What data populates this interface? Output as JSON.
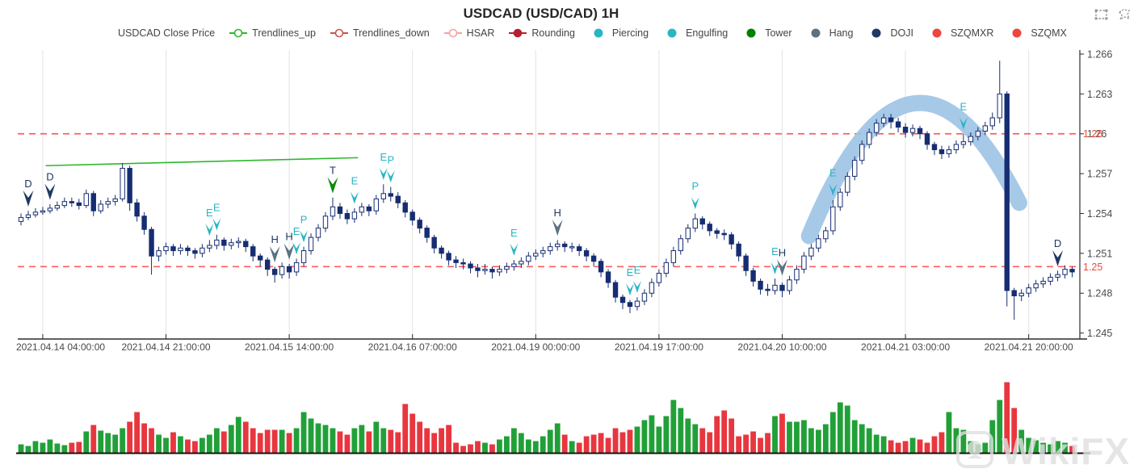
{
  "header": {
    "title": "USDCAD (USD/CAD) 1H",
    "tools": [
      {
        "name": "box-select"
      },
      {
        "name": "lasso-select"
      }
    ]
  },
  "legend": {
    "items": [
      {
        "label": "USDCAD Close Price",
        "marker": "none",
        "color": "#444444"
      },
      {
        "label": "Trendlines_up",
        "marker": "line-circle",
        "color": "#2eb82e"
      },
      {
        "label": "Trendlines_down",
        "marker": "line-circle",
        "color": "#c9544e"
      },
      {
        "label": "HSAR",
        "marker": "line-circle",
        "color": "#f4a3a3"
      },
      {
        "label": "Rounding",
        "marker": "line-dot",
        "color": "#b22230"
      },
      {
        "label": "Piercing",
        "marker": "dot",
        "color": "#2ab5c3"
      },
      {
        "label": "Engulfing",
        "marker": "dot",
        "color": "#2ab5c3"
      },
      {
        "label": "Tower",
        "marker": "dot",
        "color": "#008000"
      },
      {
        "label": "Hang",
        "marker": "dot",
        "color": "#5c7282"
      },
      {
        "label": "DOJI",
        "marker": "dot",
        "color": "#1f3864"
      },
      {
        "label": "SZQMXR",
        "marker": "dot",
        "color": "#ee4540"
      },
      {
        "label": "SZQMX",
        "marker": "dot",
        "color": "#ee4540"
      }
    ]
  },
  "watermark": {
    "text": "WikiFX"
  },
  "chart_data": {
    "type": "candlestick+volume",
    "title": "USDCAD (USD/CAD) 1H",
    "colors": {
      "bull": "#ffffff",
      "bear": "#172d72",
      "outline": "#172d72",
      "vol_up": "#21a038",
      "vol_down": "#e8363f",
      "hsar_line": "#ff5c5c",
      "hsar_label": "#e74c3c",
      "trendline_up": "#2eb82e",
      "arc": "#9dc3e6",
      "grid": "#e3e3e3",
      "axis": "#2b2b2b",
      "tick_label": "#4a4a4a",
      "marker_teal": "#2ab5c3",
      "marker_gray": "#5c7282",
      "marker_navy": "#1f3864",
      "marker_green": "#0a8a0a"
    },
    "y_axis": {
      "min": 1.245,
      "max": 1.266,
      "ticks": [
        "1.266",
        "1.263",
        "1.26",
        "1.257",
        "1.254",
        "1.251",
        "1.248",
        "1.245"
      ]
    },
    "x_axis": {
      "ticks": [
        {
          "i": 3,
          "label": "2021.04.14 04:00:00"
        },
        {
          "i": 20,
          "label": "2021.04.14 21:00:00"
        },
        {
          "i": 37,
          "label": "2021.04.15 14:00:00"
        },
        {
          "i": 54,
          "label": "2021.04.16 07:00:00"
        },
        {
          "i": 71,
          "label": "2021.04.19 00:00:00"
        },
        {
          "i": 88,
          "label": "2021.04.19 17:00:00"
        },
        {
          "i": 105,
          "label": "2021.04.20 10:00:00"
        },
        {
          "i": 122,
          "label": "2021.04.21 03:00:00"
        },
        {
          "i": 139,
          "label": "2021.04.21 20:00:00"
        }
      ]
    },
    "hsar_levels": [
      {
        "price": 1.26,
        "label": "1.26"
      },
      {
        "price": 1.25,
        "label": "1.25"
      }
    ],
    "trendline_up": {
      "i1": 3.4,
      "p1": 1.2576,
      "i2": 46.5,
      "p2": 1.2582
    },
    "rounding_arc": {
      "start": {
        "i": 108.7,
        "p": 1.2523
      },
      "ctrl": {
        "i": 122.8,
        "p": 1.271
      },
      "end": {
        "i": 137.7,
        "p": 1.2548
      }
    },
    "markers": [
      {
        "i": 1,
        "t": "D",
        "p": 1.2544
      },
      {
        "i": 4,
        "t": "D",
        "p": 1.2549
      },
      {
        "i": 26,
        "t": "E",
        "p": 1.2522
      },
      {
        "i": 27,
        "t": "E",
        "p": 1.2526
      },
      {
        "i": 35,
        "t": "H",
        "p": 1.2502
      },
      {
        "i": 37,
        "t": "H",
        "p": 1.2504
      },
      {
        "i": 38,
        "t": "E",
        "p": 1.2508
      },
      {
        "i": 39,
        "t": "P",
        "p": 1.2517
      },
      {
        "i": 43,
        "t": "T",
        "p": 1.2554
      },
      {
        "i": 46,
        "t": "E",
        "p": 1.2546
      },
      {
        "i": 50,
        "t": "E",
        "p": 1.2564
      },
      {
        "i": 51,
        "t": "P",
        "p": 1.2562
      },
      {
        "i": 68,
        "t": "E",
        "p": 1.2507
      },
      {
        "i": 74,
        "t": "H",
        "p": 1.2522
      },
      {
        "i": 84,
        "t": "E",
        "p": 1.2477
      },
      {
        "i": 85,
        "t": "E",
        "p": 1.2479
      },
      {
        "i": 93,
        "t": "P",
        "p": 1.2542
      },
      {
        "i": 104,
        "t": "E",
        "p": 1.2493
      },
      {
        "i": 105,
        "t": "H",
        "p": 1.2492
      },
      {
        "i": 112,
        "t": "E",
        "p": 1.2552
      },
      {
        "i": 130,
        "t": "E",
        "p": 1.2602
      },
      {
        "i": 143,
        "t": "D",
        "p": 1.2499
      }
    ],
    "candles": [
      [
        1.2534,
        1.254,
        1.2531,
        1.2537,
        10
      ],
      [
        1.2537,
        1.2542,
        1.2535,
        1.2539,
        8
      ],
      [
        1.2539,
        1.2544,
        1.2537,
        1.2541,
        14
      ],
      [
        1.2541,
        1.2545,
        1.2539,
        1.2542,
        12
      ],
      [
        1.2542,
        1.2547,
        1.254,
        1.2544,
        16
      ],
      [
        1.2544,
        1.2549,
        1.2542,
        1.2546,
        11
      ],
      [
        1.2546,
        1.2552,
        1.2544,
        1.2549,
        9
      ],
      [
        1.2549,
        1.2552,
        1.2545,
        1.2548,
        12
      ],
      [
        1.2548,
        1.2551,
        1.2543,
        1.2546,
        13
      ],
      [
        1.2546,
        1.2558,
        1.2544,
        1.2555,
        26
      ],
      [
        1.2555,
        1.2557,
        1.2538,
        1.2542,
        34
      ],
      [
        1.2542,
        1.255,
        1.254,
        1.2547,
        27
      ],
      [
        1.2547,
        1.2552,
        1.2544,
        1.2549,
        24
      ],
      [
        1.2549,
        1.2554,
        1.2546,
        1.2551,
        22
      ],
      [
        1.2551,
        1.2578,
        1.2549,
        1.2574,
        30
      ],
      [
        1.2574,
        1.2576,
        1.2542,
        1.2548,
        38
      ],
      [
        1.2548,
        1.2551,
        1.2534,
        1.2538,
        50
      ],
      [
        1.2538,
        1.2541,
        1.2524,
        1.2528,
        36
      ],
      [
        1.2528,
        1.253,
        1.2494,
        1.2508,
        30
      ],
      [
        1.2508,
        1.2515,
        1.2504,
        1.2512,
        22
      ],
      [
        1.2512,
        1.2518,
        1.2509,
        1.2515,
        18
      ],
      [
        1.2515,
        1.2517,
        1.2508,
        1.2512,
        25
      ],
      [
        1.2512,
        1.2517,
        1.2509,
        1.2514,
        20
      ],
      [
        1.2514,
        1.2516,
        1.2508,
        1.2512,
        16
      ],
      [
        1.2512,
        1.2514,
        1.2506,
        1.251,
        14
      ],
      [
        1.251,
        1.2517,
        1.2507,
        1.2514,
        18
      ],
      [
        1.2514,
        1.252,
        1.2511,
        1.2516,
        22
      ],
      [
        1.2516,
        1.2524,
        1.2513,
        1.252,
        30
      ],
      [
        1.252,
        1.2522,
        1.2512,
        1.2516,
        26
      ],
      [
        1.2516,
        1.2521,
        1.2513,
        1.2518,
        34
      ],
      [
        1.2518,
        1.2522,
        1.2514,
        1.2519,
        44
      ],
      [
        1.2519,
        1.2521,
        1.2511,
        1.2515,
        38
      ],
      [
        1.2515,
        1.2517,
        1.2504,
        1.2508,
        30
      ],
      [
        1.2508,
        1.251,
        1.25,
        1.2505,
        24
      ],
      [
        1.2505,
        1.2507,
        1.2493,
        1.2498,
        28
      ],
      [
        1.2498,
        1.25,
        1.2488,
        1.2494,
        28
      ],
      [
        1.2494,
        1.2503,
        1.2491,
        1.25,
        28
      ],
      [
        1.25,
        1.2502,
        1.2491,
        1.2496,
        24
      ],
      [
        1.2496,
        1.2506,
        1.2493,
        1.2503,
        30
      ],
      [
        1.2503,
        1.2515,
        1.25,
        1.2512,
        50
      ],
      [
        1.2512,
        1.2525,
        1.2509,
        1.2522,
        42
      ],
      [
        1.2522,
        1.2532,
        1.2519,
        1.2529,
        36
      ],
      [
        1.2529,
        1.2541,
        1.2526,
        1.2538,
        34
      ],
      [
        1.2538,
        1.2552,
        1.2535,
        1.2545,
        30
      ],
      [
        1.2545,
        1.2548,
        1.2536,
        1.254,
        26
      ],
      [
        1.254,
        1.2543,
        1.2532,
        1.2536,
        22
      ],
      [
        1.2536,
        1.2544,
        1.2533,
        1.2541,
        30
      ],
      [
        1.2541,
        1.2548,
        1.2538,
        1.2545,
        34
      ],
      [
        1.2545,
        1.2547,
        1.2538,
        1.2542,
        26
      ],
      [
        1.2542,
        1.2554,
        1.2539,
        1.2551,
        38
      ],
      [
        1.2551,
        1.2562,
        1.2548,
        1.2555,
        30
      ],
      [
        1.2555,
        1.256,
        1.2549,
        1.2553,
        28
      ],
      [
        1.2553,
        1.2556,
        1.2544,
        1.2548,
        25
      ],
      [
        1.2548,
        1.255,
        1.2537,
        1.2541,
        60
      ],
      [
        1.2541,
        1.2543,
        1.2531,
        1.2535,
        48
      ],
      [
        1.2535,
        1.2537,
        1.2525,
        1.2529,
        38
      ],
      [
        1.2529,
        1.2531,
        1.2518,
        1.2522,
        30
      ],
      [
        1.2522,
        1.2524,
        1.251,
        1.2514,
        24
      ],
      [
        1.2514,
        1.2516,
        1.2506,
        1.251,
        30
      ],
      [
        1.251,
        1.2512,
        1.2501,
        1.2505,
        34
      ],
      [
        1.2505,
        1.2508,
        1.2499,
        1.2503,
        12
      ],
      [
        1.2503,
        1.2506,
        1.2498,
        1.2502,
        8
      ],
      [
        1.2502,
        1.2504,
        1.2495,
        1.2499,
        10
      ],
      [
        1.2499,
        1.2502,
        1.2492,
        1.2497,
        14
      ],
      [
        1.2497,
        1.2502,
        1.2494,
        1.2498,
        12
      ],
      [
        1.2498,
        1.25,
        1.2491,
        1.2496,
        10
      ],
      [
        1.2496,
        1.2501,
        1.2493,
        1.2498,
        16
      ],
      [
        1.2498,
        1.2503,
        1.2495,
        1.25,
        20
      ],
      [
        1.25,
        1.2505,
        1.2497,
        1.2502,
        30
      ],
      [
        1.2502,
        1.2507,
        1.2499,
        1.2504,
        24
      ],
      [
        1.2504,
        1.2511,
        1.2501,
        1.2508,
        16
      ],
      [
        1.2508,
        1.2513,
        1.2505,
        1.251,
        14
      ],
      [
        1.251,
        1.2515,
        1.2507,
        1.2512,
        20
      ],
      [
        1.2512,
        1.2518,
        1.2509,
        1.2515,
        28
      ],
      [
        1.2515,
        1.252,
        1.2512,
        1.2517,
        36
      ],
      [
        1.2517,
        1.2519,
        1.2511,
        1.2515,
        22
      ],
      [
        1.2515,
        1.2518,
        1.2511,
        1.2515,
        14
      ],
      [
        1.2515,
        1.2517,
        1.2508,
        1.2512,
        12
      ],
      [
        1.2512,
        1.2514,
        1.2504,
        1.2508,
        20
      ],
      [
        1.2508,
        1.251,
        1.25,
        1.2504,
        22
      ],
      [
        1.2504,
        1.2506,
        1.2492,
        1.2496,
        24
      ],
      [
        1.2496,
        1.2498,
        1.2484,
        1.2488,
        18
      ],
      [
        1.2488,
        1.249,
        1.2473,
        1.2477,
        30
      ],
      [
        1.2477,
        1.2479,
        1.2468,
        1.2473,
        25
      ],
      [
        1.2473,
        1.2475,
        1.2465,
        1.247,
        28
      ],
      [
        1.247,
        1.2477,
        1.2467,
        1.2474,
        32
      ],
      [
        1.2474,
        1.2483,
        1.2471,
        1.248,
        40
      ],
      [
        1.248,
        1.2491,
        1.2477,
        1.2488,
        46
      ],
      [
        1.2488,
        1.2498,
        1.2485,
        1.2495,
        32
      ],
      [
        1.2495,
        1.2506,
        1.2492,
        1.2503,
        45
      ],
      [
        1.2503,
        1.2515,
        1.25,
        1.2512,
        65
      ],
      [
        1.2512,
        1.2524,
        1.2509,
        1.2521,
        55
      ],
      [
        1.2521,
        1.2532,
        1.2518,
        1.2529,
        42
      ],
      [
        1.2529,
        1.254,
        1.2526,
        1.2536,
        35
      ],
      [
        1.2536,
        1.2538,
        1.2528,
        1.2532,
        30
      ],
      [
        1.2532,
        1.2534,
        1.2523,
        1.2527,
        25
      ],
      [
        1.2527,
        1.2529,
        1.2521,
        1.2525,
        45
      ],
      [
        1.2525,
        1.2528,
        1.252,
        1.2524,
        52
      ],
      [
        1.2524,
        1.2526,
        1.2513,
        1.2517,
        42
      ],
      [
        1.2517,
        1.2519,
        1.2504,
        1.2508,
        20
      ],
      [
        1.2508,
        1.251,
        1.2493,
        1.2497,
        22
      ],
      [
        1.2497,
        1.2499,
        1.2485,
        1.2489,
        26
      ],
      [
        1.2489,
        1.2491,
        1.2479,
        1.2483,
        18
      ],
      [
        1.2483,
        1.2487,
        1.2478,
        1.2482,
        24
      ],
      [
        1.2482,
        1.2491,
        1.2479,
        1.2486,
        45
      ],
      [
        1.2486,
        1.2488,
        1.2477,
        1.2482,
        48
      ],
      [
        1.2482,
        1.2493,
        1.2479,
        1.249,
        38
      ],
      [
        1.249,
        1.2501,
        1.2487,
        1.2498,
        38
      ],
      [
        1.2498,
        1.2511,
        1.2495,
        1.2508,
        40
      ],
      [
        1.2508,
        1.2517,
        1.2505,
        1.2514,
        30
      ],
      [
        1.2514,
        1.2524,
        1.2511,
        1.2521,
        28
      ],
      [
        1.2521,
        1.253,
        1.2518,
        1.2527,
        35
      ],
      [
        1.2527,
        1.255,
        1.2524,
        1.2545,
        50
      ],
      [
        1.2545,
        1.2559,
        1.2542,
        1.2556,
        62
      ],
      [
        1.2556,
        1.2571,
        1.2553,
        1.2568,
        58
      ],
      [
        1.2568,
        1.2583,
        1.2565,
        1.258,
        40
      ],
      [
        1.258,
        1.2595,
        1.2577,
        1.2592,
        35
      ],
      [
        1.2592,
        1.2604,
        1.2589,
        1.2601,
        30
      ],
      [
        1.2601,
        1.2611,
        1.2598,
        1.2608,
        22
      ],
      [
        1.2608,
        1.2615,
        1.2605,
        1.2612,
        20
      ],
      [
        1.2612,
        1.2615,
        1.2604,
        1.2609,
        15
      ],
      [
        1.2609,
        1.2612,
        1.2601,
        1.2605,
        12
      ],
      [
        1.2605,
        1.2608,
        1.2597,
        1.2601,
        14
      ],
      [
        1.2601,
        1.2607,
        1.2598,
        1.2604,
        18
      ],
      [
        1.2604,
        1.2606,
        1.2596,
        1.26,
        16
      ],
      [
        1.26,
        1.2602,
        1.2588,
        1.2592,
        12
      ],
      [
        1.2592,
        1.2594,
        1.2584,
        1.2588,
        20
      ],
      [
        1.2588,
        1.2591,
        1.2581,
        1.2585,
        25
      ],
      [
        1.2585,
        1.2591,
        1.2582,
        1.2588,
        50
      ],
      [
        1.2588,
        1.2595,
        1.2585,
        1.2592,
        30
      ],
      [
        1.2592,
        1.26,
        1.2589,
        1.2594,
        28
      ],
      [
        1.2594,
        1.2601,
        1.2591,
        1.2598,
        14
      ],
      [
        1.2598,
        1.2605,
        1.2595,
        1.2602,
        10
      ],
      [
        1.2602,
        1.2609,
        1.2599,
        1.2606,
        12
      ],
      [
        1.2606,
        1.2616,
        1.2603,
        1.2612,
        40
      ],
      [
        1.2612,
        1.2655,
        1.2608,
        1.263,
        65
      ],
      [
        1.263,
        1.2632,
        1.247,
        1.2482,
        87
      ],
      [
        1.2482,
        1.2484,
        1.246,
        1.2478,
        55
      ],
      [
        1.2478,
        1.2483,
        1.2474,
        1.248,
        28
      ],
      [
        1.248,
        1.2487,
        1.2477,
        1.2484,
        18
      ],
      [
        1.2484,
        1.249,
        1.2481,
        1.2487,
        15
      ],
      [
        1.2487,
        1.2492,
        1.2484,
        1.2489,
        12
      ],
      [
        1.2489,
        1.2495,
        1.2486,
        1.2492,
        10
      ],
      [
        1.2492,
        1.2497,
        1.2489,
        1.2494,
        14
      ],
      [
        1.2494,
        1.2501,
        1.2491,
        1.2498,
        12
      ],
      [
        1.2498,
        1.25,
        1.2492,
        1.2496,
        8
      ]
    ]
  }
}
